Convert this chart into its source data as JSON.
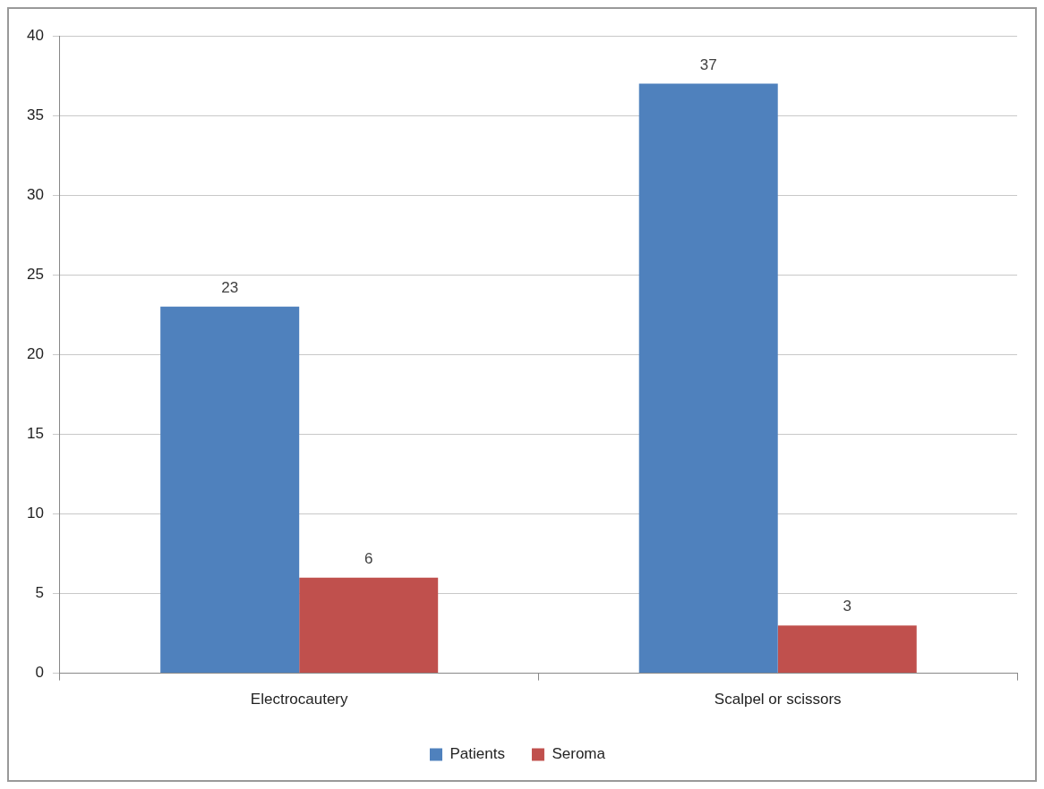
{
  "chart_data": {
    "type": "bar",
    "categories": [
      "Electrocautery",
      "Scalpel or scissors"
    ],
    "series": [
      {
        "name": "Patients",
        "color": "#4f81bd",
        "values": [
          23,
          37
        ]
      },
      {
        "name": "Seroma",
        "color": "#c0504d",
        "values": [
          6,
          3
        ]
      }
    ],
    "ylim": [
      0,
      40
    ],
    "yticks": [
      0,
      5,
      10,
      15,
      20,
      25,
      30,
      35,
      40
    ],
    "grid": "y",
    "legend": "bottom",
    "data_labels": true
  }
}
